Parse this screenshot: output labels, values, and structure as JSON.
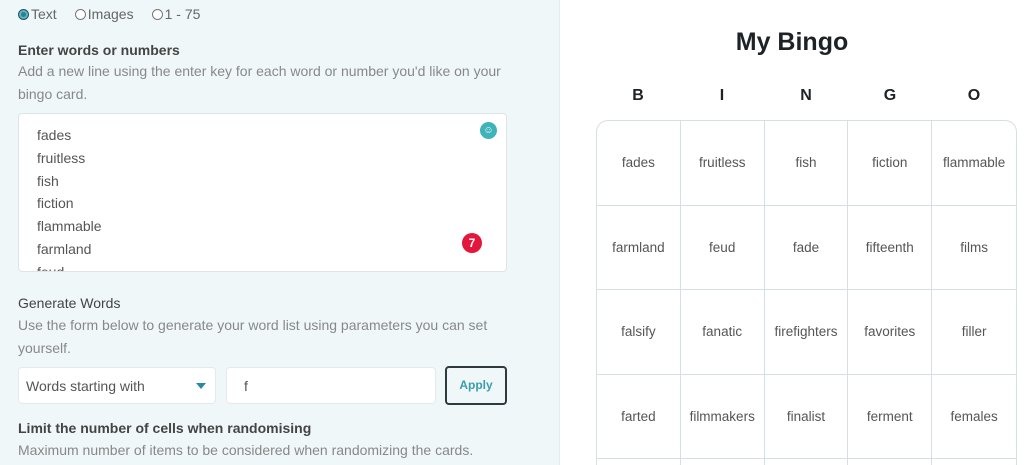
{
  "mode_options": [
    {
      "label": "Text",
      "selected": true
    },
    {
      "label": "Images",
      "selected": false
    },
    {
      "label": "1 - 75",
      "selected": false
    }
  ],
  "words_section": {
    "label": "Enter words or numbers",
    "description": "Add a new line using the enter key for each word or number you'd like on your bingo card.",
    "words": [
      "fades",
      "fruitless",
      "fish",
      "fiction",
      "flammable",
      "farmland",
      "feud"
    ],
    "emoji_icon": "smiley-icon",
    "badge_count": "7"
  },
  "generate": {
    "label": "Generate Words",
    "description": "Use the form below to generate your word list using parameters you can set yourself.",
    "select_value": "Words starting with",
    "input_value": "f",
    "apply_label": "Apply"
  },
  "limit": {
    "label": "Limit the number of cells when randomising",
    "description": "Maximum number of items to be considered when randomizing the cards."
  },
  "card": {
    "title": "My Bingo",
    "headers": [
      "B",
      "I",
      "N",
      "G",
      "O"
    ],
    "cells": [
      "fades",
      "fruitless",
      "fish",
      "fiction",
      "flammable",
      "farmland",
      "feud",
      "fade",
      "fifteenth",
      "films",
      "falsify",
      "fanatic",
      "firefighters",
      "favorites",
      "filler",
      "farted",
      "filmmakers",
      "finalist",
      "ferment",
      "females",
      "",
      "",
      "",
      "",
      ""
    ]
  },
  "colors": {
    "accent": "#2a8aa2",
    "badge": "#e3173b",
    "panel_bg": "#f0f7f9"
  }
}
